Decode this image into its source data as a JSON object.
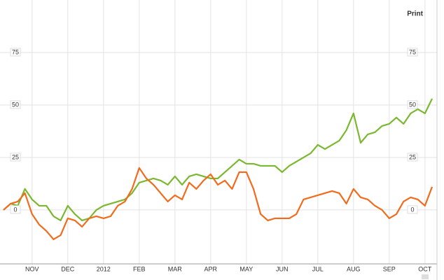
{
  "print_label": "Print",
  "chart_data": {
    "type": "line",
    "categories": [
      null,
      null,
      null,
      null,
      "NOV",
      null,
      null,
      null,
      null,
      "DEC",
      null,
      null,
      null,
      null,
      "2012",
      null,
      null,
      null,
      null,
      "FEB",
      null,
      null,
      null,
      null,
      "MAR",
      null,
      null,
      null,
      null,
      "APR",
      null,
      null,
      null,
      null,
      "MAY",
      null,
      null,
      null,
      null,
      "JUN",
      null,
      null,
      null,
      null,
      "JUL",
      null,
      null,
      null,
      null,
      "AUG",
      null,
      null,
      null,
      null,
      "SEP",
      null,
      null,
      null,
      null,
      "OCT",
      null
    ],
    "series": [
      {
        "color": "#7ab82e",
        "values": [
          0,
          3,
          2,
          10,
          5,
          2,
          2,
          -3,
          -5,
          2,
          -2,
          -5,
          -4,
          0,
          2,
          3,
          4,
          5,
          8,
          13,
          14,
          15,
          14,
          12,
          16,
          12,
          16,
          17,
          16,
          15,
          15,
          18,
          21,
          24,
          22,
          22,
          21,
          21,
          21,
          18,
          21,
          23,
          25,
          27,
          31,
          29,
          31,
          33,
          38,
          46,
          32,
          36,
          37,
          40,
          41,
          44,
          41,
          46,
          48,
          46,
          53
        ]
      },
      {
        "color": "#f26b1d",
        "values": [
          0,
          3,
          4,
          8,
          -2,
          -7,
          -10,
          -14,
          -12,
          -4,
          -5,
          -8,
          -4,
          -3,
          -4,
          -3,
          2,
          4,
          10,
          20,
          15,
          12,
          8,
          4,
          7,
          5,
          13,
          10,
          14,
          17,
          12,
          14,
          10,
          18,
          18,
          10,
          -2,
          -5,
          -4,
          -4,
          -4,
          -2,
          5,
          6,
          7,
          8,
          9,
          8,
          3,
          10,
          6,
          5,
          2,
          0,
          -4,
          -2,
          4,
          6,
          5,
          2,
          11
        ]
      }
    ],
    "ylim": [
      -25.7,
      100
    ],
    "yticks": [
      0,
      25,
      50,
      75
    ],
    "y2lim": [
      -25.7,
      100
    ],
    "y2ticks": [
      0,
      25,
      50,
      75
    ],
    "grid": true
  }
}
